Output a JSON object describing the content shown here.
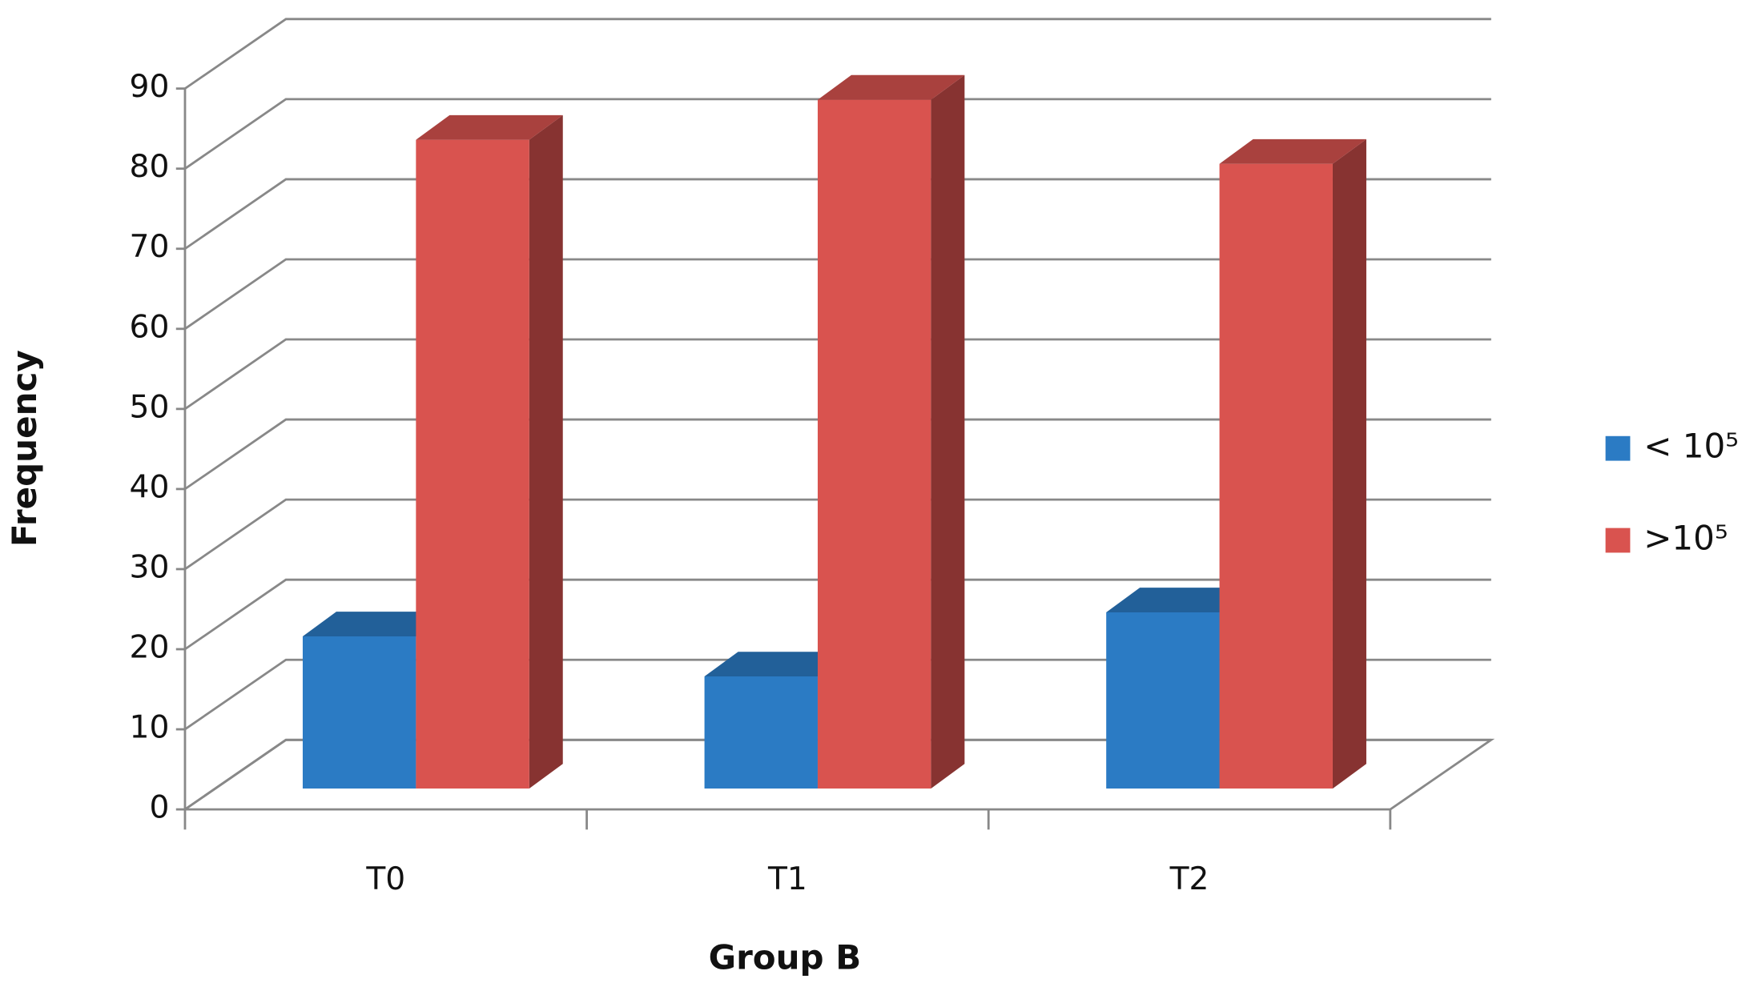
{
  "chart_data": {
    "type": "bar3d",
    "x_label": "Group B",
    "y_label": "Frequency",
    "categories": [
      "T0",
      "T1",
      "T2"
    ],
    "series": [
      {
        "name": "< 10⁵",
        "color": "#2b7bc4",
        "values": [
          19,
          14,
          22
        ]
      },
      {
        "name": ">10⁵",
        "color": "#d9534f",
        "values": [
          81,
          86,
          78
        ]
      }
    ],
    "ylim": [
      0,
      90
    ],
    "yticks": [
      0,
      10,
      20,
      30,
      40,
      50,
      60,
      70,
      80,
      90
    ],
    "grid": true,
    "legend": "right"
  }
}
